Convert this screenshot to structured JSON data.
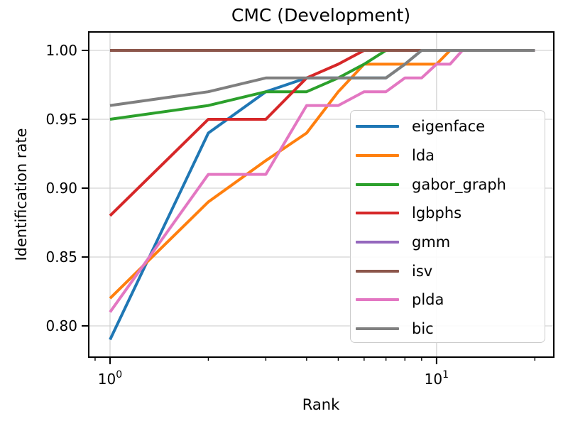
{
  "chart_data": {
    "type": "line",
    "title": "CMC (Development)",
    "xlabel": "Rank",
    "ylabel": "Identification rate",
    "x_scale": "log",
    "xlim": [
      0.8606,
      22.86
    ],
    "ylim": [
      0.7773,
      1.0134
    ],
    "grid": "major",
    "grid_color": "#d3d3d3",
    "axis_color": "#000000",
    "legend_position": "lower right",
    "y_ticks": [
      {
        "value": 0.8,
        "label": "0.80"
      },
      {
        "value": 0.85,
        "label": "0.85"
      },
      {
        "value": 0.9,
        "label": "0.90"
      },
      {
        "value": 0.95,
        "label": "0.95"
      },
      {
        "value": 1.0,
        "label": "1.00"
      }
    ],
    "x_ticks_major": [
      {
        "value": 1,
        "base": "10",
        "exp": "0"
      },
      {
        "value": 10,
        "base": "10",
        "exp": "1"
      }
    ],
    "x_ticks_minor": [
      0.9,
      2,
      3,
      4,
      5,
      6,
      7,
      8,
      9,
      20
    ],
    "ranks": [
      1,
      2,
      3,
      4,
      5,
      6,
      7,
      8,
      9,
      10,
      11,
      12,
      13,
      14,
      15,
      16,
      17,
      18,
      19,
      20
    ],
    "series": [
      {
        "name": "eigenface",
        "color": "#1f77b4",
        "values": [
          0.79,
          0.94,
          0.97,
          0.98,
          0.98,
          0.98,
          0.98,
          0.99,
          1.0,
          1.0,
          1.0,
          1.0,
          1.0,
          1.0,
          1.0,
          1.0,
          1.0,
          1.0,
          1.0,
          1.0
        ]
      },
      {
        "name": "lda",
        "color": "#ff7f0e",
        "values": [
          0.82,
          0.89,
          0.92,
          0.94,
          0.97,
          0.99,
          0.99,
          0.99,
          0.99,
          0.99,
          1.0,
          1.0,
          1.0,
          1.0,
          1.0,
          1.0,
          1.0,
          1.0,
          1.0,
          1.0
        ]
      },
      {
        "name": "gabor_graph",
        "color": "#2ca02c",
        "values": [
          0.95,
          0.96,
          0.97,
          0.97,
          0.98,
          0.99,
          1.0,
          1.0,
          1.0,
          1.0,
          1.0,
          1.0,
          1.0,
          1.0,
          1.0,
          1.0,
          1.0,
          1.0,
          1.0,
          1.0
        ]
      },
      {
        "name": "lgbphs",
        "color": "#d62728",
        "values": [
          0.88,
          0.95,
          0.95,
          0.98,
          0.99,
          1.0,
          1.0,
          1.0,
          1.0,
          1.0,
          1.0,
          1.0,
          1.0,
          1.0,
          1.0,
          1.0,
          1.0,
          1.0,
          1.0,
          1.0
        ]
      },
      {
        "name": "gmm",
        "color": "#9467bd",
        "values": [
          1.0,
          1.0,
          1.0,
          1.0,
          1.0,
          1.0,
          1.0,
          1.0,
          1.0,
          1.0,
          1.0,
          1.0,
          1.0,
          1.0,
          1.0,
          1.0,
          1.0,
          1.0,
          1.0,
          1.0
        ]
      },
      {
        "name": "isv",
        "color": "#8c564b",
        "values": [
          1.0,
          1.0,
          1.0,
          1.0,
          1.0,
          1.0,
          1.0,
          1.0,
          1.0,
          1.0,
          1.0,
          1.0,
          1.0,
          1.0,
          1.0,
          1.0,
          1.0,
          1.0,
          1.0,
          1.0
        ]
      },
      {
        "name": "plda",
        "color": "#e377c2",
        "values": [
          0.81,
          0.91,
          0.91,
          0.96,
          0.96,
          0.97,
          0.97,
          0.98,
          0.98,
          0.99,
          0.99,
          1.0,
          1.0,
          1.0,
          1.0,
          1.0,
          1.0,
          1.0,
          1.0,
          1.0
        ]
      },
      {
        "name": "bic",
        "color": "#7f7f7f",
        "values": [
          0.96,
          0.97,
          0.98,
          0.98,
          0.98,
          0.98,
          0.98,
          0.99,
          1.0,
          1.0,
          1.0,
          1.0,
          1.0,
          1.0,
          1.0,
          1.0,
          1.0,
          1.0,
          1.0,
          1.0
        ]
      }
    ]
  }
}
